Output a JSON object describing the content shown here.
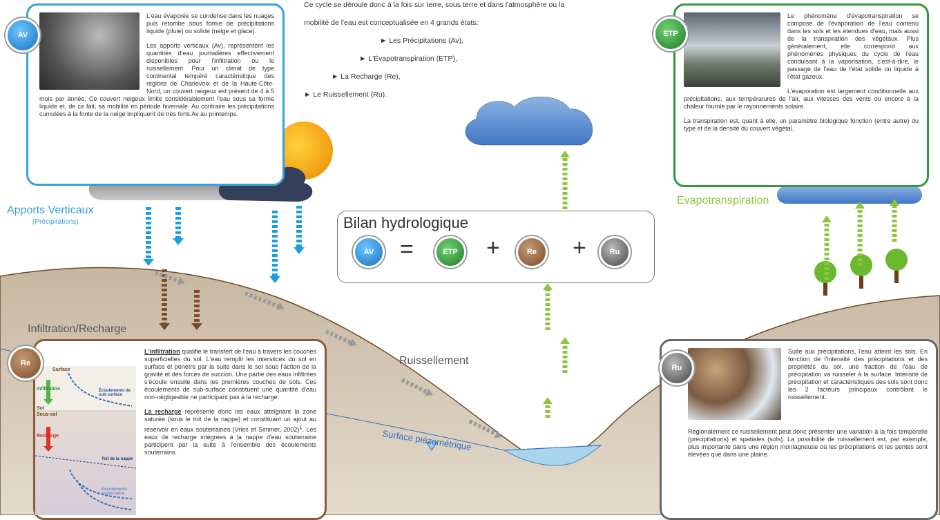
{
  "intro": {
    "lines": [
      "Ce cycle se déroule donc à la fois sur terre, sous terre et dans l'atmosphère ou la",
      "mobilité de l'eau est  conceptualisée en 4 grands états:"
    ],
    "items": [
      "► Les Précipitations (Av),",
      "► L'Évapotranspiration (ETP),",
      "► La Recharge (Re),",
      "► Le Ruissellement (Ru)."
    ]
  },
  "av_box": {
    "badge": "AV",
    "paragraphs": [
      "L'eau évaporée se condense dans les nuages puis retombe sous forme de précipitations liquide (pluie) ou solide (neige et glace).",
      "Les apports verticaux (Av), représentent les quantités d'eau journalières effectivement disponibles pour l'infiltration ou le ruissellement. Pour un climat de type continental tempéré caractéristique des régions de Charlevoix et de la Haute-Côte-Nord, un couvert neigeux est présent de 4 à 5 mois par année. Ce couvert neigeux limite considérablement l'eau sous sa forme liquide et, de ce fait, sa mobilité en période hivernale. Au contraire les précipitations cumulées à la fonte de la neige impliquent de très forts Av au printemps."
    ]
  },
  "etp_box": {
    "badge": "ETP",
    "paragraphs": [
      "Le phénomène d'évapotranspiration se compose de l'évaporation de l'eau contenu dans les sols et les étendues d'eau, mais aussi de la transpiration des végétaux. Plus généralement, elle correspond aux phénomènes physiques du cycle de l'eau conduisant à la vaporisation, c'est-à-dire, le passage de l'eau de l'état solide ou liquide à l'état gazeux.",
      "L'évaporation est largement conditionnelle aux précipitations, aux températures de l'air, aux vitesses des vents ou encore à la chaleur fournie par le rayonnements solaire.",
      "La transpiration est, quant à elle, un paramètre biologique fonction (entre autre) du type et de la densité du couvert végétal."
    ]
  },
  "re_box": {
    "badge": "Re",
    "p1": {
      "lead": "L'infiltration",
      "text": " qualifie le transfert de l'eau à travers les couches superficielles du sol. L'eau remplit les interstices du sol en surface et pénètre par la suite dans le sol sous l'action de la gravité et des forces de succion. Une partie des eaux infiltrées s'écoule ensuite dans les premières couches de sols. Ces écoulements de sub-surface constituent une quantité d'eau non-négligeable ne participant pas à la recharge."
    },
    "p2": {
      "lead": "La recharge",
      "text": " représente donc les eaux atteignant la zone saturée (sous le toit de la nappe) et constituant un ajout au réservoir en eaux souterraines (Vries et Simmer, 2002)",
      "sup": "1",
      "tail": ". Les eaux de recharge intégrées à la nappe d'eau souterraine participent par la suite à l'ensemble des écoulements souterrains."
    },
    "diagram": {
      "surface": "Surface",
      "infiltration": "Infiltration",
      "subsurface": "Écoulements de sub-surface",
      "sol": "Sol",
      "sous_sol": "Sous-sol",
      "recharge": "Recharge",
      "toit": "Toit de la nappe",
      "souterrains": "Écoulements souterrains"
    }
  },
  "ru_box": {
    "badge": "Ru",
    "paragraphs": [
      "Suite aux précipitations, l'eau atteint les sols. En fonction de l'intensité des précipitations et des propriétés du sol, une fraction de l'eau de précipitation va ruisseler à la surface. Intensité de précipitation et caractéristiques des sols sont donc les 2 facteurs principaux contrôlant le ruissellement.",
      "Régionalement ce ruissellement peut donc présenter  une variation à la fois temporelle (précipitations) et spatiales (sols). La possibilité de ruissellement est, par exemple, plus importante dans une région montagneuse où les précipitations et les pentes sont élevées que dans une plaine."
    ]
  },
  "labels": {
    "apports": "Apports Verticaux",
    "precipitations": "(Précipitations)",
    "evapotranspiration": "Evapotranspiration",
    "infiltration_recharge": "Infiltration/Recharge",
    "ruissellement": "Ruissellement",
    "piezometrique": "Surface piézométrique"
  },
  "bilan": {
    "title": "Bilan hydrologique",
    "terms": [
      "AV",
      "ETP",
      "Re",
      "Ru"
    ],
    "operators": [
      "=",
      "+",
      "+"
    ]
  }
}
